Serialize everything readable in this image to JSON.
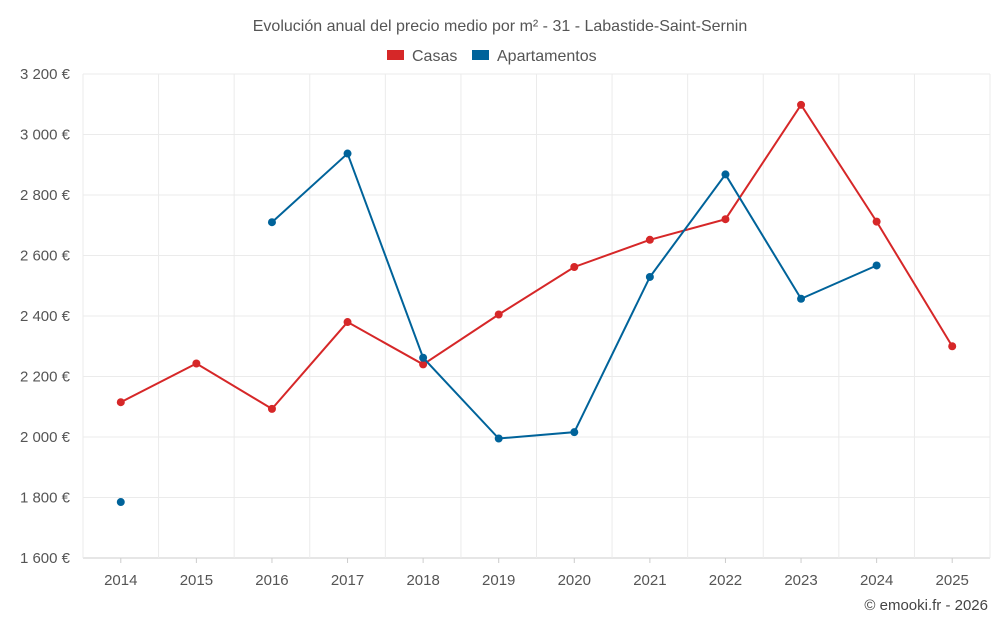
{
  "chart_data": {
    "type": "line",
    "title": "Evolución anual del precio medio por m² - 31 - Labastide-Saint-Sernin",
    "x": [
      "2014",
      "2015",
      "2016",
      "2017",
      "2018",
      "2019",
      "2020",
      "2021",
      "2022",
      "2023",
      "2024",
      "2025"
    ],
    "y_ticks": [
      "1 600 €",
      "1 800 €",
      "2 000 €",
      "2 200 €",
      "2 400 €",
      "2 600 €",
      "2 800 €",
      "3 000 €",
      "3 200 €"
    ],
    "ylim": [
      1600,
      3200
    ],
    "grid": true,
    "legend_position": "top-center",
    "series": [
      {
        "name": "Casas",
        "color": "#d62728",
        "values": [
          2115,
          2243,
          2093,
          2380,
          2240,
          2405,
          2562,
          2652,
          2720,
          3098,
          2712,
          2300
        ]
      },
      {
        "name": "Apartamentos",
        "color": "#00639a",
        "values": [
          1785,
          null,
          2710,
          2937,
          2262,
          1995,
          2016,
          2529,
          2868,
          2457,
          2567,
          null
        ]
      }
    ]
  },
  "credit": "© emooki.fr - 2026"
}
